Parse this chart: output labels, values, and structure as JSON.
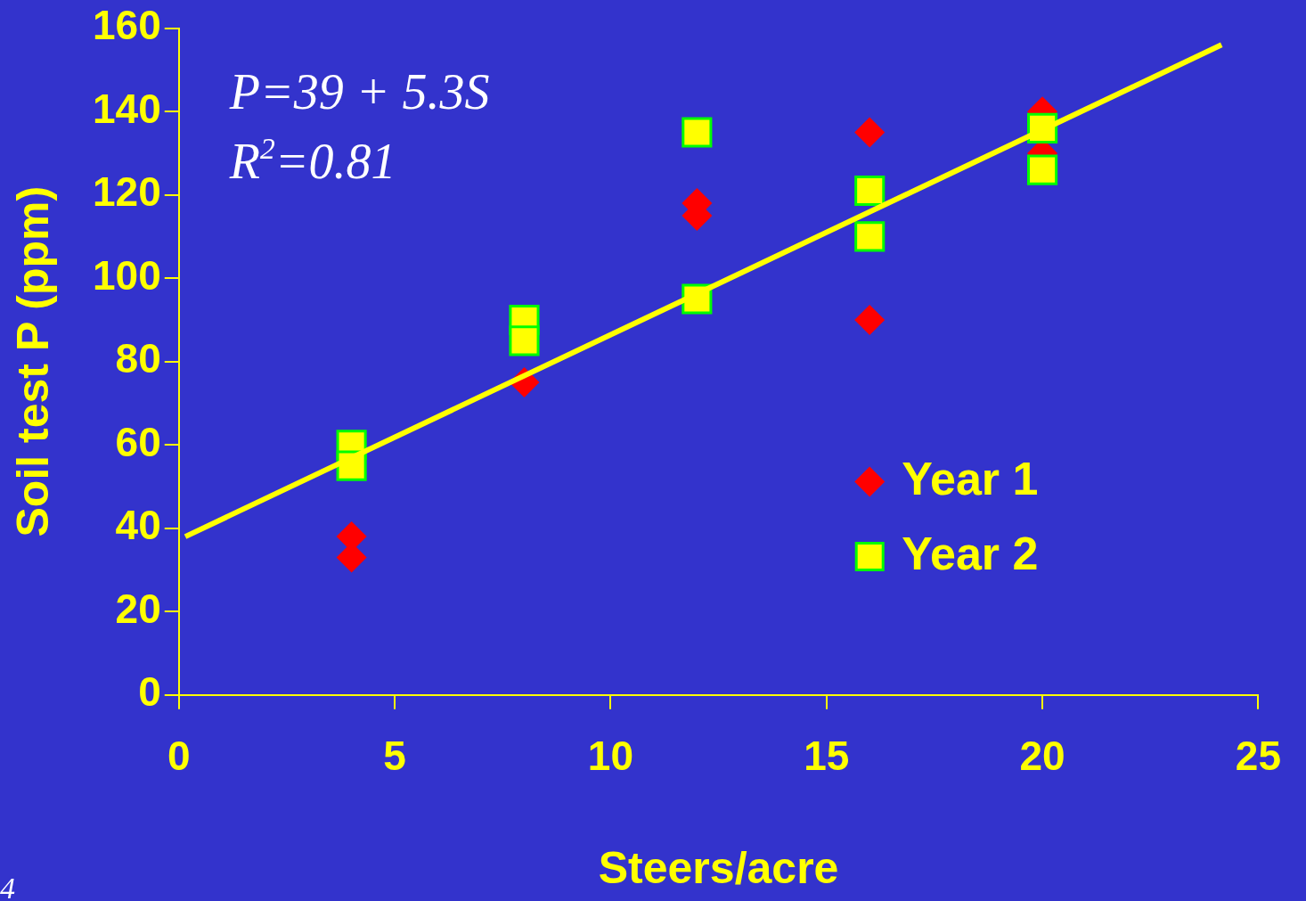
{
  "chart_data": {
    "type": "scatter",
    "xlabel": "Steers/acre",
    "ylabel": "Soil test P (ppm)",
    "xlim": [
      0,
      25
    ],
    "xticks": [
      0,
      5,
      10,
      15,
      20,
      25
    ],
    "ylim": [
      0,
      160
    ],
    "yticks": [
      0,
      20,
      40,
      60,
      80,
      100,
      120,
      140,
      160
    ],
    "grid": false,
    "legend": "right",
    "annotations": [
      "P=39 + 5.3S",
      "R$^{2}$=0.81",
      "4"
    ],
    "series": [
      {
        "name": "Year 1",
        "marker": "diamond",
        "color": "#ff0000",
        "x": [
          4,
          4,
          8,
          12,
          12,
          16,
          16,
          20,
          20
        ],
        "values": [
          38,
          33,
          75,
          118,
          115,
          135,
          90,
          140,
          130
        ]
      },
      {
        "name": "Year 2",
        "marker": "square",
        "color": "#ffff00",
        "x": [
          4,
          4,
          8,
          8,
          12,
          12,
          16,
          16,
          20,
          20
        ],
        "values": [
          60,
          55,
          90,
          85,
          135,
          95,
          121,
          110,
          136,
          126
        ]
      },
      {
        "type": "line",
        "marker": "none",
        "line_style": "solid",
        "color": "#ffff00",
        "x": [
          0.15,
          24.15
        ],
        "values": [
          38,
          156
        ]
      }
    ]
  }
}
